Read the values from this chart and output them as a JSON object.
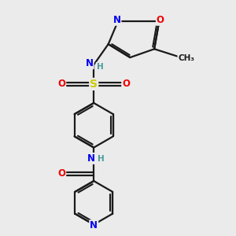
{
  "bg_color": "#ebebeb",
  "bond_color": "#1a1a1a",
  "atom_colors": {
    "N": "#0000ee",
    "O": "#ee0000",
    "S": "#cccc00",
    "H": "#4a9a9a",
    "C": "#1a1a1a"
  },
  "font_size": 8.5,
  "linewidth": 1.6
}
